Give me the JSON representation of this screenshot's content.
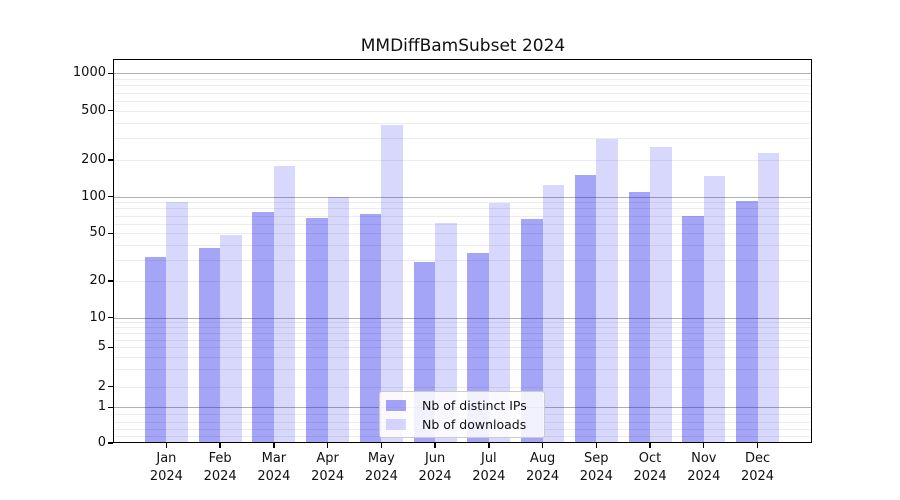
{
  "title": "MMDiffBamSubset 2024",
  "legend": {
    "items": [
      {
        "label": "Nb of distinct IPs",
        "series_key": "ip"
      },
      {
        "label": "Nb of downloads",
        "series_key": "dl"
      }
    ]
  },
  "colors": {
    "ip_bar": "rgba(5,5,235,0.36)",
    "dl_bar": "rgba(5,5,235,0.155)",
    "major_grid": "#b0b0b0",
    "minor_grid": "#ececec",
    "axis": "#000000"
  },
  "chart_data": {
    "type": "bar",
    "title": "MMDiffBamSubset 2024",
    "categories": [
      "Jan 2024",
      "Feb 2024",
      "Mar 2024",
      "Apr 2024",
      "May 2024",
      "Jun 2024",
      "Jul 2024",
      "Aug 2024",
      "Sep 2024",
      "Oct 2024",
      "Nov 2024",
      "Dec 2024"
    ],
    "series": [
      {
        "name": "Nb of distinct IPs",
        "values": [
          32,
          38,
          75,
          67,
          72,
          29,
          34,
          66,
          150,
          110,
          70,
          92
        ]
      },
      {
        "name": "Nb of downloads",
        "values": [
          90,
          48,
          178,
          100,
          383,
          61,
          88,
          124,
          294,
          255,
          148,
          226
        ]
      }
    ],
    "xlabel": "",
    "ylabel": "",
    "yscale": "symlog",
    "ytick_labels": [
      "0",
      "1",
      "2",
      "5",
      "10",
      "20",
      "50",
      "100",
      "200",
      "500",
      "1000"
    ],
    "ylim": [
      0,
      1300
    ],
    "grid": true,
    "legend_position": "lower center"
  }
}
